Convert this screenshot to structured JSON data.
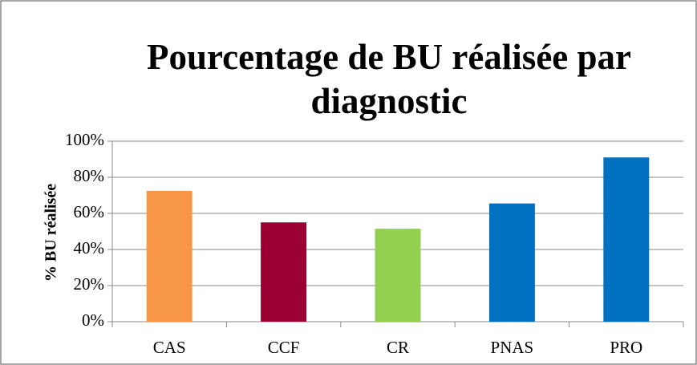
{
  "chart_data": {
    "type": "bar",
    "title": "Pourcentage de BU réalisée par diagnostic",
    "y_label": "% BU réalisée",
    "categories": [
      "CAS",
      "CCF",
      "CR",
      "PNAS",
      "PRO"
    ],
    "values": [
      72.5,
      55,
      51.5,
      65.5,
      91
    ],
    "colors": [
      "#f79646",
      "#9b0033",
      "#92d050",
      "#0070c0",
      "#0070c0"
    ],
    "ylim": [
      0,
      100
    ],
    "yticks": [
      {
        "value": 0,
        "label": "0%"
      },
      {
        "value": 20,
        "label": "20%"
      },
      {
        "value": 40,
        "label": "40%"
      },
      {
        "value": 60,
        "label": "60%"
      },
      {
        "value": 80,
        "label": "80%"
      },
      {
        "value": 100,
        "label": "100%"
      }
    ],
    "grid": true
  }
}
